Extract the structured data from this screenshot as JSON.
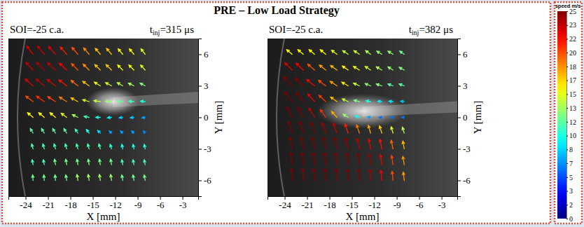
{
  "title": "PRE – Low Load Strategy",
  "chart_data": [
    {
      "type": "quiver",
      "soi_label": "SOI=-25 c.a.",
      "time_label": {
        "base": "t",
        "sub": "inj",
        "text": "=315 μs"
      },
      "x_label": "X [mm]",
      "y_label": "Y [mm]",
      "xlim": [
        -26.3,
        -0.9
      ],
      "ylim": [
        -7.5,
        7.5
      ],
      "xticks": [
        -24,
        -21,
        -18,
        -15,
        -12,
        -9,
        -6,
        -3
      ],
      "yticks": [
        6,
        3,
        0,
        -3,
        -6
      ],
      "x": [
        -23,
        -21.5,
        -20,
        -18.5,
        -17,
        -15.5,
        -14,
        -12.5,
        -11,
        -9.5,
        -8
      ],
      "y": [
        6,
        4.5,
        3,
        1.5,
        0,
        -1.5,
        -3,
        -4.5,
        -6
      ],
      "u": [
        [
          -14,
          -15,
          -15,
          -14,
          -13,
          -12,
          -11,
          -11,
          -10,
          -10,
          -9
        ],
        [
          -16,
          -17,
          -17,
          -16,
          -14,
          -13,
          -12,
          -12,
          -11,
          -11,
          -10
        ],
        [
          -17,
          -18,
          -18,
          -17,
          -15,
          -14,
          -13,
          -13,
          -12,
          -12,
          -11
        ],
        [
          -16,
          -17,
          -17,
          -16,
          -15,
          -14,
          -14,
          -13,
          -12,
          -11,
          -10
        ],
        [
          -12,
          -12,
          -12,
          -12,
          -12,
          -11,
          -10,
          -9,
          -8,
          -8,
          -7
        ],
        [
          -6,
          -6,
          -6,
          -6,
          -6,
          -6,
          -6,
          -5,
          -5,
          -5,
          -4
        ],
        [
          -3,
          -3,
          -3,
          -3,
          -3,
          -3,
          -3,
          -3,
          -2,
          -2,
          -2
        ],
        [
          -2,
          -2,
          -2,
          -2,
          -2,
          -2,
          -2,
          -2,
          -2,
          -2,
          -2
        ],
        [
          -1,
          -1,
          -1,
          -2,
          -2,
          -2,
          -2,
          -2,
          -2,
          -2,
          -2
        ]
      ],
      "v": [
        [
          18,
          18,
          17,
          16,
          15,
          14,
          13,
          13,
          12,
          12,
          12
        ],
        [
          17,
          17,
          16,
          15,
          14,
          13,
          12,
          12,
          11,
          11,
          11
        ],
        [
          15,
          15,
          14,
          13,
          12,
          10,
          8,
          7,
          7,
          6,
          6
        ],
        [
          12,
          12,
          11,
          10,
          8,
          4,
          2,
          1,
          1,
          1,
          1
        ],
        [
          10,
          10,
          10,
          9,
          6,
          2,
          0,
          -1,
          -1,
          -1,
          -1
        ],
        [
          10,
          10,
          10,
          10,
          9,
          8,
          6,
          5,
          5,
          5,
          5
        ],
        [
          11,
          11,
          11,
          11,
          11,
          11,
          11,
          10,
          10,
          10,
          10
        ],
        [
          11,
          11,
          12,
          12,
          12,
          12,
          12,
          12,
          11,
          11,
          11
        ],
        [
          12,
          12,
          12,
          12,
          13,
          13,
          13,
          13,
          12,
          12,
          12
        ]
      ]
    },
    {
      "type": "quiver",
      "soi_label": "SOI=-25 c.a.",
      "time_label": {
        "base": "t",
        "sub": "inj",
        "text": "=382 μs"
      },
      "x_label": "X [mm]",
      "y_label": "Y [mm]",
      "xlim": [
        -26.3,
        -0.9
      ],
      "ylim": [
        -7.5,
        7.5
      ],
      "xticks": [
        -24,
        -21,
        -18,
        -15,
        -12,
        -9,
        -6,
        -3
      ],
      "yticks": [
        6,
        3,
        0,
        -3,
        -6
      ],
      "x": [
        -23,
        -21.5,
        -20,
        -18.5,
        -17,
        -15.5,
        -14,
        -12.5,
        -11,
        -9.5,
        -8
      ],
      "y": [
        6,
        4.5,
        3,
        1.5,
        0,
        -1.5,
        -3,
        -4.5,
        -6
      ],
      "u": [
        [
          -12,
          -12,
          -12,
          -12,
          -12,
          -12,
          -12,
          -11,
          -11,
          -11,
          -10
        ],
        [
          -16,
          -16,
          -15,
          -14,
          -14,
          -13,
          -13,
          -12,
          -12,
          -11,
          -11
        ],
        [
          -19,
          -18,
          -17,
          -16,
          -15,
          -14,
          -13,
          -12,
          -12,
          -11,
          -11
        ],
        [
          -16,
          -16,
          -15,
          -15,
          -14,
          -13,
          -12,
          -10,
          -9,
          -9,
          -8
        ],
        [
          -12,
          -12,
          -12,
          -12,
          -12,
          -11,
          -9,
          -7,
          -6,
          -6,
          -6
        ],
        [
          -8,
          -8,
          -8,
          -8,
          -8,
          -7,
          -6,
          -5,
          -5,
          -4,
          -4
        ],
        [
          -5,
          -5,
          -5,
          -5,
          -5,
          -5,
          -5,
          -4,
          -4,
          -4,
          -3
        ],
        [
          -3,
          -3,
          -3,
          -3,
          -3,
          -3,
          -3,
          -3,
          -3,
          -3,
          -3
        ],
        [
          -2,
          -2,
          -2,
          -2,
          -2,
          -2,
          -2,
          -2,
          -2,
          -2,
          -2
        ]
      ],
      "v": [
        [
          10,
          10,
          10,
          10,
          9,
          8,
          8,
          8,
          7,
          7,
          7
        ],
        [
          16,
          15,
          13,
          11,
          10,
          9,
          8,
          8,
          7,
          7,
          6
        ],
        [
          19,
          17,
          14,
          12,
          10,
          8,
          6,
          5,
          4,
          4,
          4
        ],
        [
          21,
          20,
          17,
          14,
          10,
          6,
          3,
          2,
          1,
          1,
          1
        ],
        [
          23,
          22,
          20,
          17,
          13,
          7,
          3,
          1,
          0,
          0,
          0
        ],
        [
          25,
          25,
          24,
          23,
          22,
          20,
          18,
          17,
          16,
          14,
          13
        ],
        [
          26,
          26,
          26,
          26,
          25,
          24,
          23,
          22,
          21,
          19,
          17
        ],
        [
          26,
          26,
          26,
          26,
          26,
          25,
          25,
          24,
          22,
          20,
          18
        ],
        [
          26,
          26,
          26,
          26,
          26,
          25,
          25,
          24,
          22,
          20,
          18
        ]
      ]
    }
  ],
  "colorbar": {
    "title": "speed m/s",
    "range": [
      0,
      25
    ],
    "ticks": [
      25,
      {
        "value": 23.33,
        "label": "23"
      },
      {
        "value": 21.67,
        "label": "22"
      },
      20,
      {
        "value": 18.33,
        "label": "18"
      },
      {
        "value": 16.67,
        "label": "17"
      },
      15,
      {
        "value": 13.33,
        "label": "13"
      },
      {
        "value": 11.67,
        "label": "12"
      },
      10,
      {
        "value": 8.33,
        "label": "8"
      },
      {
        "value": 6.67,
        "label": "7"
      },
      5,
      {
        "value": 3.33,
        "label": "3"
      },
      {
        "value": 1.67,
        "label": "2"
      },
      0
    ]
  }
}
